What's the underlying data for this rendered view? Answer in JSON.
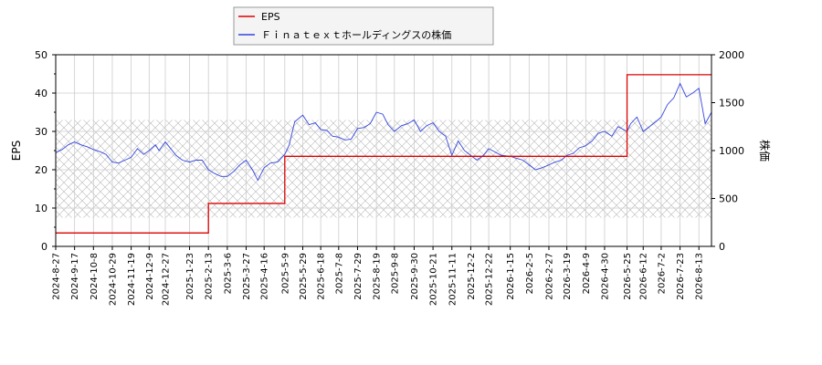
{
  "chart_data": {
    "type": "line",
    "legend": {
      "placement": "top-center",
      "entries": [
        {
          "label": "EPS",
          "color": "#dd0000"
        },
        {
          "label": "Ｆｉｎａｔｅｘｔホールディングスの株価",
          "color": "#3344dd"
        }
      ]
    },
    "y_left": {
      "label": "EPS",
      "range": [
        0,
        50
      ],
      "ticks": [
        "0",
        "10",
        "20",
        "30",
        "40",
        "50"
      ]
    },
    "y_right": {
      "label": "株価",
      "range": [
        0,
        2000
      ],
      "ticks": [
        "0",
        "500",
        "1000",
        "1500",
        "2000"
      ]
    },
    "x_range": [
      "2024-08-27",
      "2026-08-27"
    ],
    "x_ticks": [
      "2024-8-27",
      "2024-9-17",
      "2024-10-8",
      "2024-10-29",
      "2024-11-19",
      "2024-12-9",
      "2024-12-27",
      "2025-1-23",
      "2025-2-13",
      "2025-3-6",
      "2025-3-27",
      "2025-4-16",
      "2025-5-9",
      "2025-5-29",
      "2025-6-18",
      "2025-7-8",
      "2025-7-29",
      "2025-8-19",
      "2025-9-8",
      "2025-9-30",
      "2025-10-21",
      "2025-11-11",
      "2025-12-2",
      "2025-12-22",
      "2026-1-15",
      "2026-2-5",
      "2026-2-27",
      "2026-3-19",
      "2026-4-9",
      "2026-4-30",
      "2026-5-25",
      "2026-6-12",
      "2026-7-2",
      "2026-7-23",
      "2026-8-13"
    ],
    "grid": true,
    "hatched_band": {
      "axis": "right",
      "range": [
        300,
        1320
      ]
    },
    "series": [
      {
        "name": "EPS",
        "axis": "left",
        "step": true,
        "color": "#dd0000",
        "x": [
          "2024-08-27",
          "2025-02-13",
          "2025-05-09",
          "2026-05-25",
          "2026-08-27"
        ],
        "y": [
          3.5,
          11.2,
          23.5,
          44.8,
          44.8
        ]
      },
      {
        "name": "Ｆｉｎａｔｅｘｔホールディングスの株価",
        "axis": "right",
        "step": false,
        "color": "#3344dd",
        "x": [
          "2024-08-27",
          "2024-09-03",
          "2024-09-10",
          "2024-09-17",
          "2024-09-24",
          "2024-10-01",
          "2024-10-08",
          "2024-10-15",
          "2024-10-22",
          "2024-10-29",
          "2024-11-05",
          "2024-11-12",
          "2024-11-19",
          "2024-11-26",
          "2024-12-03",
          "2024-12-09",
          "2024-12-16",
          "2024-12-20",
          "2024-12-27",
          "2025-01-08",
          "2025-01-15",
          "2025-01-23",
          "2025-01-30",
          "2025-02-06",
          "2025-02-13",
          "2025-02-20",
          "2025-02-27",
          "2025-03-06",
          "2025-03-13",
          "2025-03-20",
          "2025-03-27",
          "2025-04-03",
          "2025-04-09",
          "2025-04-16",
          "2025-04-23",
          "2025-05-01",
          "2025-05-09",
          "2025-05-14",
          "2025-05-20",
          "2025-05-29",
          "2025-06-05",
          "2025-06-12",
          "2025-06-18",
          "2025-06-25",
          "2025-07-01",
          "2025-07-08",
          "2025-07-15",
          "2025-07-22",
          "2025-07-29",
          "2025-08-05",
          "2025-08-12",
          "2025-08-19",
          "2025-08-26",
          "2025-09-01",
          "2025-09-08",
          "2025-09-16",
          "2025-09-23",
          "2025-09-30",
          "2025-10-07",
          "2025-10-14",
          "2025-10-21",
          "2025-10-28",
          "2025-11-04",
          "2025-11-11",
          "2025-11-18",
          "2025-11-25",
          "2025-12-02",
          "2025-12-09",
          "2025-12-16",
          "2025-12-22",
          "2026-01-05",
          "2026-01-15",
          "2026-01-22",
          "2026-01-29",
          "2026-02-05",
          "2026-02-12",
          "2026-02-19",
          "2026-02-27",
          "2026-03-06",
          "2026-03-13",
          "2026-03-19",
          "2026-03-26",
          "2026-04-02",
          "2026-04-09",
          "2026-04-16",
          "2026-04-23",
          "2026-04-30",
          "2026-05-08",
          "2026-05-15",
          "2026-05-25",
          "2026-05-29",
          "2026-06-05",
          "2026-06-12",
          "2026-06-19",
          "2026-06-26",
          "2026-07-02",
          "2026-07-09",
          "2026-07-16",
          "2026-07-23",
          "2026-07-30",
          "2026-08-06",
          "2026-08-13",
          "2026-08-20",
          "2026-08-27"
        ],
        "y": [
          980,
          1010,
          1060,
          1090,
          1060,
          1040,
          1010,
          990,
          960,
          880,
          870,
          900,
          930,
          1020,
          960,
          1000,
          1060,
          1000,
          1090,
          950,
          900,
          880,
          900,
          900,
          800,
          760,
          730,
          730,
          780,
          850,
          900,
          800,
          690,
          820,
          870,
          880,
          960,
          1060,
          1300,
          1370,
          1270,
          1290,
          1220,
          1210,
          1150,
          1140,
          1110,
          1120,
          1230,
          1240,
          1280,
          1400,
          1380,
          1270,
          1200,
          1260,
          1280,
          1320,
          1200,
          1260,
          1290,
          1200,
          1150,
          950,
          1100,
          1000,
          950,
          900,
          950,
          1020,
          950,
          940,
          920,
          900,
          850,
          800,
          820,
          850,
          880,
          900,
          950,
          970,
          1030,
          1050,
          1100,
          1180,
          1200,
          1150,
          1250,
          1200,
          1280,
          1350,
          1200,
          1250,
          1300,
          1350,
          1480,
          1550,
          1700,
          1560,
          1600,
          1650,
          1280,
          1400
        ]
      }
    ]
  }
}
